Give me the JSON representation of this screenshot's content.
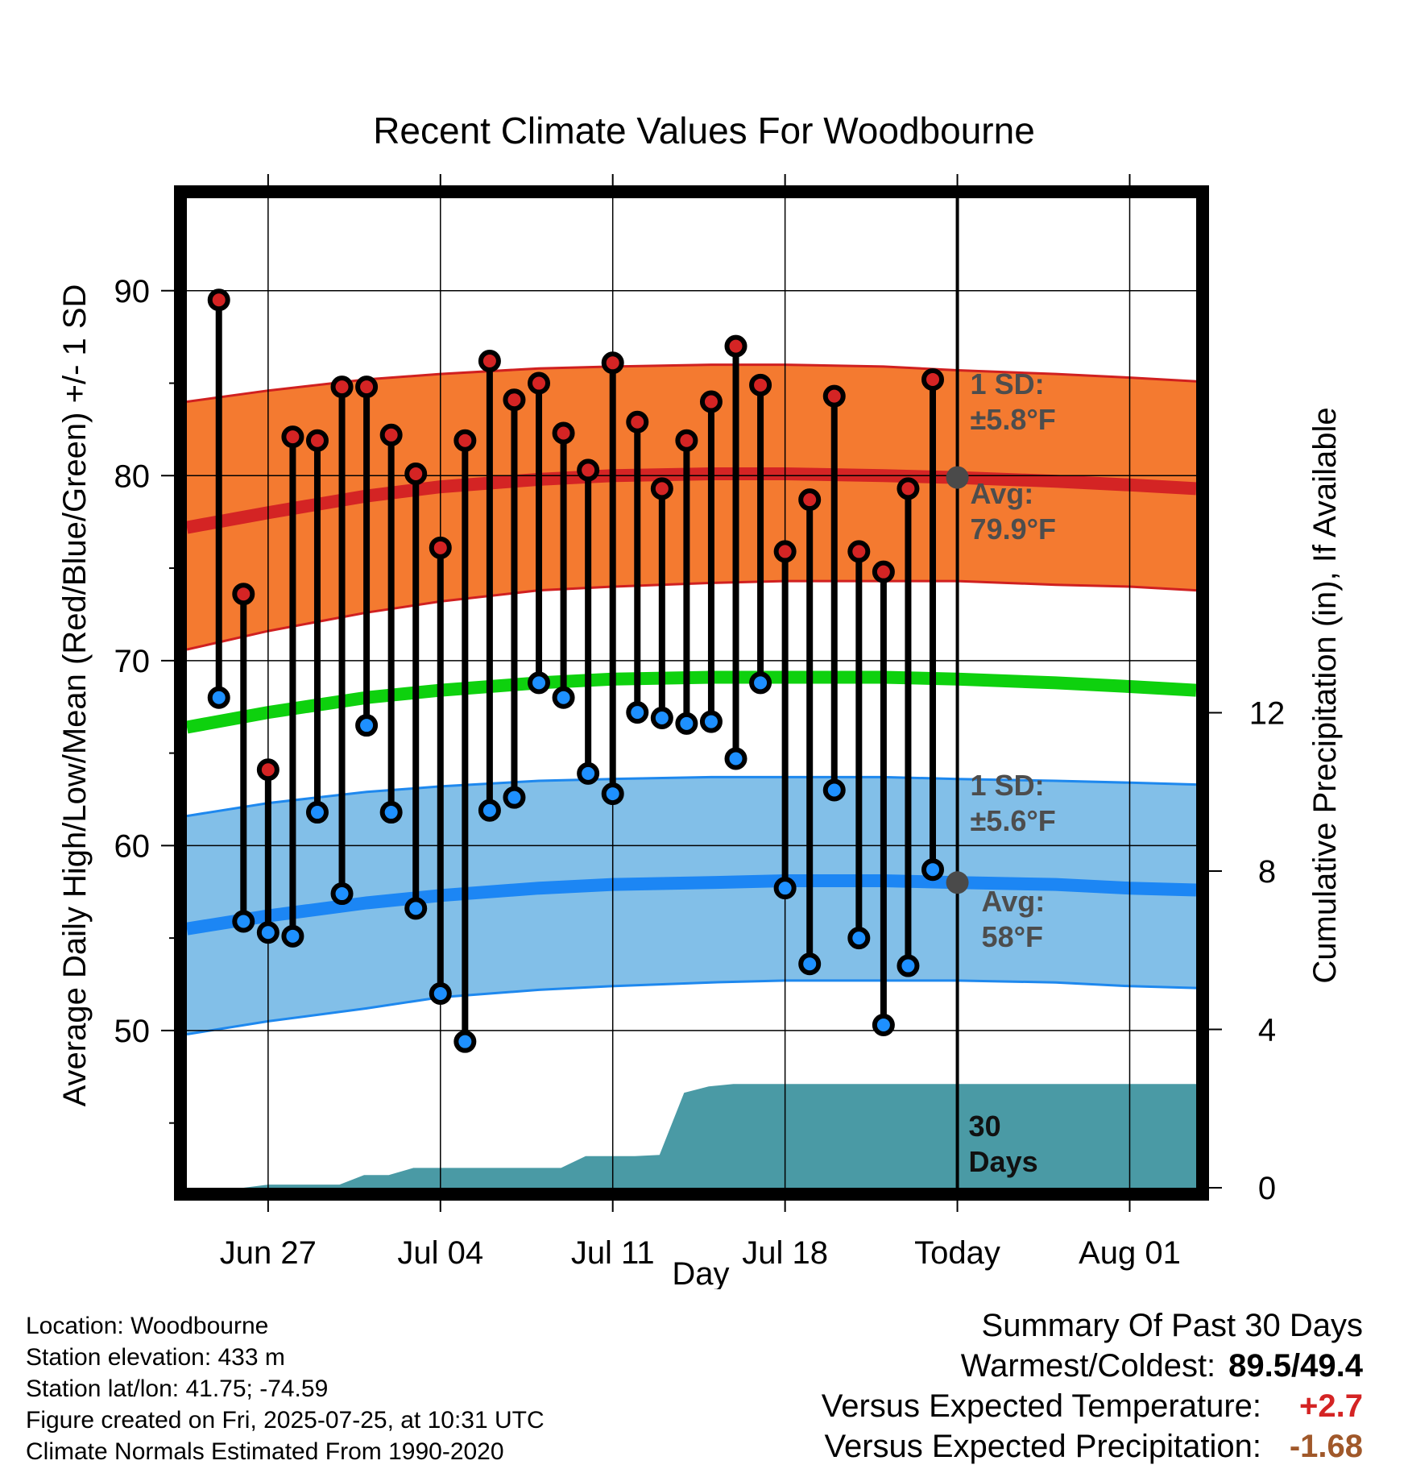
{
  "chart_data": {
    "type": "line",
    "title": "Recent Climate Values For Woodbourne",
    "xlabel": "Day",
    "ylabel_left": "Average Daily High/Low/Mean (Red/Blue/Green) +/- 1 SD",
    "ylabel_right": "Cumulative Precipitation (in), If Available",
    "x_tick_labels": [
      "Jun 27",
      "Jul 04",
      "Jul 11",
      "Jul 18",
      "Today",
      "Aug 01"
    ],
    "x_tick_days": [
      3,
      10,
      17,
      24,
      31,
      38
    ],
    "y_left_ticks": [
      50,
      60,
      70,
      80,
      90
    ],
    "y_left_range": [
      41.5,
      95
    ],
    "y_right_ticks": [
      0,
      4,
      8,
      12
    ],
    "y_right_range": [
      0,
      25
    ],
    "x_range": [
      -0.3,
      40.7
    ],
    "highs": [
      89.5,
      73.6,
      64.1,
      82.1,
      81.9,
      84.8,
      84.8,
      82.2,
      80.1,
      76.1,
      81.9,
      86.2,
      84.1,
      85.0,
      82.3,
      80.3,
      86.1,
      82.9,
      79.3,
      81.9,
      84.0,
      87.0,
      84.9,
      75.9,
      78.7,
      84.3,
      75.9,
      74.8,
      79.3,
      85.2
    ],
    "lows": [
      68.0,
      55.9,
      55.3,
      55.1,
      61.8,
      57.4,
      66.5,
      61.8,
      56.6,
      52.0,
      49.4,
      61.9,
      62.6,
      68.8,
      68.0,
      63.9,
      62.8,
      67.2,
      66.9,
      66.6,
      66.7,
      64.7,
      68.8,
      57.7,
      53.6,
      63.0,
      55.0,
      50.3,
      53.5,
      58.7
    ],
    "normal_high": [
      {
        "day": -0.3,
        "avg": 77.2,
        "upper": 84.0,
        "lower": 70.6
      },
      {
        "day": 3,
        "avg": 78.0,
        "upper": 84.6,
        "lower": 71.6
      },
      {
        "day": 7,
        "avg": 78.9,
        "upper": 85.2,
        "lower": 72.6
      },
      {
        "day": 10,
        "avg": 79.4,
        "upper": 85.5,
        "lower": 73.2
      },
      {
        "day": 14,
        "avg": 79.8,
        "upper": 85.8,
        "lower": 73.8
      },
      {
        "day": 17,
        "avg": 80.0,
        "upper": 85.9,
        "lower": 74.0
      },
      {
        "day": 21,
        "avg": 80.1,
        "upper": 86.0,
        "lower": 74.2
      },
      {
        "day": 24,
        "avg": 80.1,
        "upper": 86.0,
        "lower": 74.3
      },
      {
        "day": 28,
        "avg": 80.0,
        "upper": 85.9,
        "lower": 74.3
      },
      {
        "day": 31,
        "avg": 79.9,
        "upper": 85.7,
        "lower": 74.3
      },
      {
        "day": 35,
        "avg": 79.7,
        "upper": 85.5,
        "lower": 74.1
      },
      {
        "day": 38,
        "avg": 79.5,
        "upper": 85.3,
        "lower": 74.0
      },
      {
        "day": 40.7,
        "avg": 79.3,
        "upper": 85.1,
        "lower": 73.8
      }
    ],
    "normal_low": [
      {
        "day": -0.3,
        "avg": 55.5,
        "upper": 61.6,
        "lower": 49.8
      },
      {
        "day": 3,
        "avg": 56.2,
        "upper": 62.3,
        "lower": 50.5
      },
      {
        "day": 7,
        "avg": 56.9,
        "upper": 62.9,
        "lower": 51.2
      },
      {
        "day": 10,
        "avg": 57.3,
        "upper": 63.2,
        "lower": 51.8
      },
      {
        "day": 14,
        "avg": 57.7,
        "upper": 63.5,
        "lower": 52.2
      },
      {
        "day": 17,
        "avg": 57.9,
        "upper": 63.6,
        "lower": 52.4
      },
      {
        "day": 21,
        "avg": 58.0,
        "upper": 63.7,
        "lower": 52.6
      },
      {
        "day": 24,
        "avg": 58.1,
        "upper": 63.7,
        "lower": 52.7
      },
      {
        "day": 28,
        "avg": 58.1,
        "upper": 63.7,
        "lower": 52.7
      },
      {
        "day": 31,
        "avg": 58.0,
        "upper": 63.6,
        "lower": 52.7
      },
      {
        "day": 35,
        "avg": 57.9,
        "upper": 63.5,
        "lower": 52.6
      },
      {
        "day": 38,
        "avg": 57.7,
        "upper": 63.4,
        "lower": 52.4
      },
      {
        "day": 40.7,
        "avg": 57.6,
        "upper": 63.3,
        "lower": 52.3
      }
    ],
    "normal_mean": [
      {
        "day": -0.3,
        "value": 66.4
      },
      {
        "day": 3,
        "value": 67.2
      },
      {
        "day": 7,
        "value": 68.0
      },
      {
        "day": 10,
        "value": 68.4
      },
      {
        "day": 14,
        "value": 68.8
      },
      {
        "day": 17,
        "value": 69.0
      },
      {
        "day": 21,
        "value": 69.1
      },
      {
        "day": 24,
        "value": 69.1
      },
      {
        "day": 28,
        "value": 69.1
      },
      {
        "day": 31,
        "value": 69.0
      },
      {
        "day": 35,
        "value": 68.8
      },
      {
        "day": 38,
        "value": 68.6
      },
      {
        "day": 40.7,
        "value": 68.4
      }
    ],
    "precip_cumulative": [
      {
        "day": -0.3,
        "value": 0.0
      },
      {
        "day": 2,
        "value": 0.0
      },
      {
        "day": 3,
        "value": 0.08
      },
      {
        "day": 5.9,
        "value": 0.08
      },
      {
        "day": 6.9,
        "value": 0.32
      },
      {
        "day": 7.9,
        "value": 0.32
      },
      {
        "day": 8.9,
        "value": 0.5
      },
      {
        "day": 14.9,
        "value": 0.5
      },
      {
        "day": 15.9,
        "value": 0.8
      },
      {
        "day": 17.9,
        "value": 0.8
      },
      {
        "day": 18.9,
        "value": 0.83
      },
      {
        "day": 19.9,
        "value": 2.4
      },
      {
        "day": 20.9,
        "value": 2.56
      },
      {
        "day": 21.9,
        "value": 2.62
      },
      {
        "day": 40.7,
        "value": 2.62
      }
    ],
    "high_sd_label": [
      "1 SD:",
      "±5.8°F"
    ],
    "high_avg_label": [
      "Avg:",
      "79.9°F"
    ],
    "low_sd_label": [
      "1 SD:",
      "±5.6°F"
    ],
    "low_avg_label": [
      "Avg:",
      "58°F"
    ],
    "period_label": [
      "30",
      "Days"
    ],
    "today_day": 31,
    "today_high_avg": 79.9,
    "today_low_avg": 58.0,
    "colors": {
      "high_band": "#f47a30",
      "high_band_edge": "#d02020",
      "high_avg_line": "#d42424",
      "low_band": "#82bfe8",
      "low_band_edge": "#1e88ee",
      "low_avg_line": "#1c86f4",
      "mean_line": "#0ed10e",
      "precip_fill": "#4a9aa5",
      "high_marker": "#d42424",
      "low_marker": "#1e90ff",
      "today_marker": "#4a4a4a",
      "grid": "#000000"
    },
    "grid": true
  },
  "footer": {
    "location": "Location: Woodbourne",
    "elevation": "Station elevation: 433 m",
    "latlon": "Station lat/lon: 41.75; -74.59",
    "created": "Figure created on Fri, 2025-07-25, at 10:31 UTC",
    "normals": "Climate Normals Estimated From 1990-2020"
  },
  "summary": {
    "heading": "Summary Of Past 30 Days",
    "warm_cold_label": "Warmest/Coldest:",
    "warm_cold_value": "89.5/49.4",
    "temp_label": "Versus Expected Temperature:",
    "temp_value": "+2.7",
    "temp_color": "#d42424",
    "precip_label": "Versus Expected Precipitation:",
    "precip_value": "-1.68",
    "precip_color": "#a0582a"
  }
}
